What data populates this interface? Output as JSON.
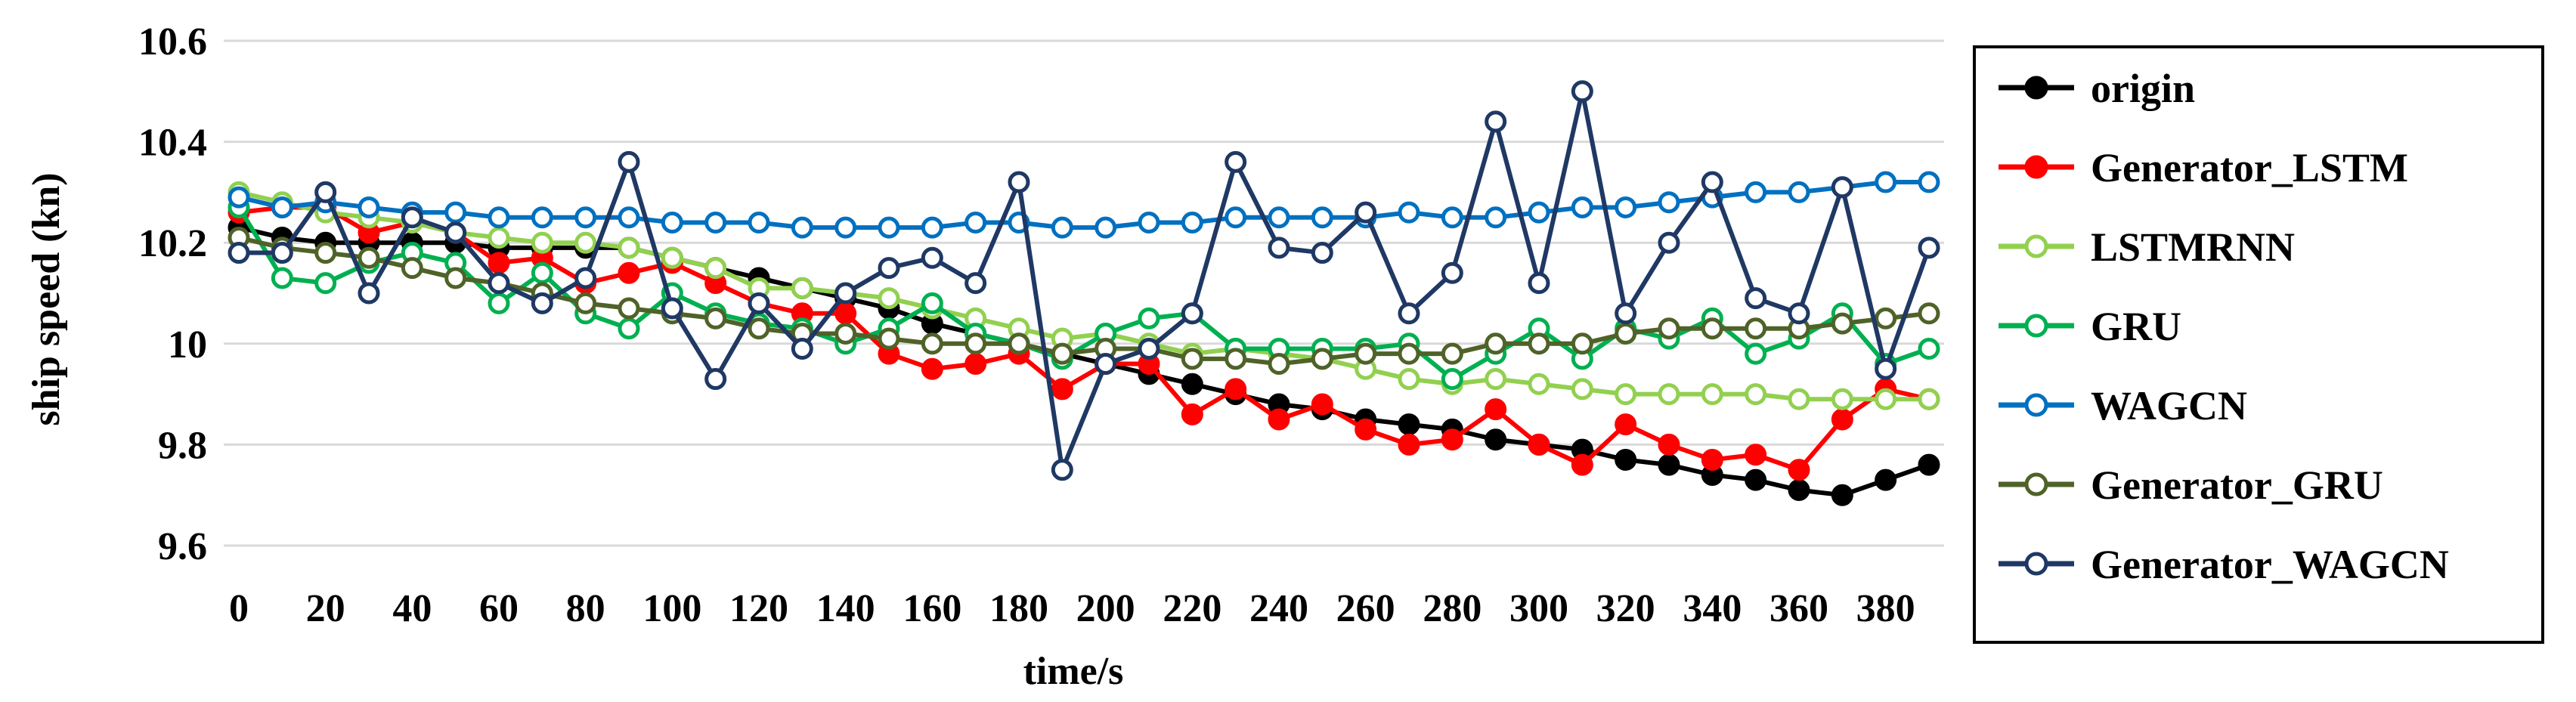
{
  "chart_data": {
    "type": "line",
    "xlabel": "time/s",
    "ylabel": "ship speed (kn)",
    "xlim": [
      0,
      390
    ],
    "ylim": [
      9.6,
      10.6
    ],
    "x_ticks": [
      "0",
      "20",
      "40",
      "60",
      "80",
      "100",
      "120",
      "140",
      "160",
      "180",
      "200",
      "220",
      "240",
      "260",
      "280",
      "300",
      "320",
      "340",
      "360",
      "380"
    ],
    "y_ticks": [
      "9.6",
      "9.8",
      "10",
      "10.2",
      "10.4",
      "10.6"
    ],
    "grid": "horizontal",
    "legend_position": "right",
    "x": [
      0,
      10,
      20,
      30,
      40,
      50,
      60,
      70,
      80,
      90,
      100,
      110,
      120,
      130,
      140,
      150,
      160,
      170,
      180,
      190,
      200,
      210,
      220,
      230,
      240,
      250,
      260,
      270,
      280,
      290,
      300,
      310,
      320,
      330,
      340,
      350,
      360,
      370,
      380,
      390
    ],
    "series": [
      {
        "name": "origin",
        "color": "#000000",
        "marker": "filled",
        "values": [
          10.23,
          10.21,
          10.2,
          10.2,
          10.2,
          10.2,
          10.19,
          10.19,
          10.19,
          10.19,
          10.17,
          10.15,
          10.13,
          10.11,
          10.09,
          10.07,
          10.04,
          10.02,
          10.0,
          9.98,
          9.96,
          9.94,
          9.92,
          9.9,
          9.88,
          9.87,
          9.85,
          9.84,
          9.83,
          9.81,
          9.8,
          9.79,
          9.77,
          9.76,
          9.74,
          9.73,
          9.71,
          9.7,
          9.73,
          9.76
        ]
      },
      {
        "name": "Generator_LSTM",
        "color": "#ff0000",
        "marker": "filled",
        "values": [
          10.26,
          10.27,
          10.27,
          10.22,
          10.24,
          10.22,
          10.16,
          10.17,
          10.12,
          10.14,
          10.16,
          10.12,
          10.08,
          10.06,
          10.06,
          9.98,
          9.95,
          9.96,
          9.98,
          9.91,
          9.96,
          9.96,
          9.86,
          9.91,
          9.85,
          9.88,
          9.83,
          9.8,
          9.81,
          9.87,
          9.8,
          9.76,
          9.84,
          9.8,
          9.77,
          9.78,
          9.75,
          9.85,
          9.91,
          9.89
        ]
      },
      {
        "name": "LSTMRNN",
        "color": "#92d050",
        "marker": "open",
        "values": [
          10.3,
          10.28,
          10.26,
          10.25,
          10.24,
          10.22,
          10.21,
          10.2,
          10.2,
          10.19,
          10.17,
          10.15,
          10.11,
          10.11,
          10.1,
          10.09,
          10.07,
          10.05,
          10.03,
          10.01,
          10.02,
          10.0,
          9.98,
          9.99,
          9.98,
          9.97,
          9.95,
          9.93,
          9.92,
          9.93,
          9.92,
          9.91,
          9.9,
          9.9,
          9.9,
          9.9,
          9.89,
          9.89,
          9.89,
          9.89
        ]
      },
      {
        "name": "GRU",
        "color": "#00b050",
        "marker": "open",
        "values": [
          10.27,
          10.13,
          10.12,
          10.16,
          10.18,
          10.16,
          10.08,
          10.14,
          10.06,
          10.03,
          10.1,
          10.06,
          10.04,
          10.03,
          10.0,
          10.03,
          10.08,
          10.02,
          10.0,
          9.97,
          10.02,
          10.05,
          10.06,
          9.99,
          9.99,
          9.99,
          9.99,
          10.0,
          9.93,
          9.98,
          10.03,
          9.97,
          10.03,
          10.01,
          10.05,
          9.98,
          10.01,
          10.06,
          9.96,
          9.99
        ]
      },
      {
        "name": "WAGCN",
        "color": "#0070c0",
        "marker": "open",
        "values": [
          10.29,
          10.27,
          10.28,
          10.27,
          10.26,
          10.26,
          10.25,
          10.25,
          10.25,
          10.25,
          10.24,
          10.24,
          10.24,
          10.23,
          10.23,
          10.23,
          10.23,
          10.24,
          10.24,
          10.23,
          10.23,
          10.24,
          10.24,
          10.25,
          10.25,
          10.25,
          10.25,
          10.26,
          10.25,
          10.25,
          10.26,
          10.27,
          10.27,
          10.28,
          10.29,
          10.3,
          10.3,
          10.31,
          10.32,
          10.32
        ]
      },
      {
        "name": "Generator_GRU",
        "color": "#4f6228",
        "marker": "open",
        "values": [
          10.21,
          10.19,
          10.18,
          10.17,
          10.15,
          10.13,
          10.12,
          10.1,
          10.08,
          10.07,
          10.06,
          10.05,
          10.03,
          10.02,
          10.02,
          10.01,
          10.0,
          10.0,
          10.0,
          9.98,
          9.99,
          9.99,
          9.97,
          9.97,
          9.96,
          9.97,
          9.98,
          9.98,
          9.98,
          10.0,
          10.0,
          10.0,
          10.02,
          10.03,
          10.03,
          10.03,
          10.03,
          10.04,
          10.05,
          10.06
        ]
      },
      {
        "name": "Generator_WAGCN",
        "color": "#1f3864",
        "marker": "open",
        "values": [
          10.18,
          10.18,
          10.3,
          10.1,
          10.25,
          10.22,
          10.12,
          10.08,
          10.13,
          10.36,
          10.07,
          9.93,
          10.08,
          9.99,
          10.1,
          10.15,
          10.17,
          10.12,
          10.32,
          9.75,
          9.96,
          9.99,
          10.06,
          10.36,
          10.19,
          10.18,
          10.26,
          10.06,
          10.14,
          10.44,
          10.12,
          10.5,
          10.06,
          10.2,
          10.32,
          10.09,
          10.06,
          10.31,
          9.95,
          10.19
        ]
      }
    ]
  }
}
